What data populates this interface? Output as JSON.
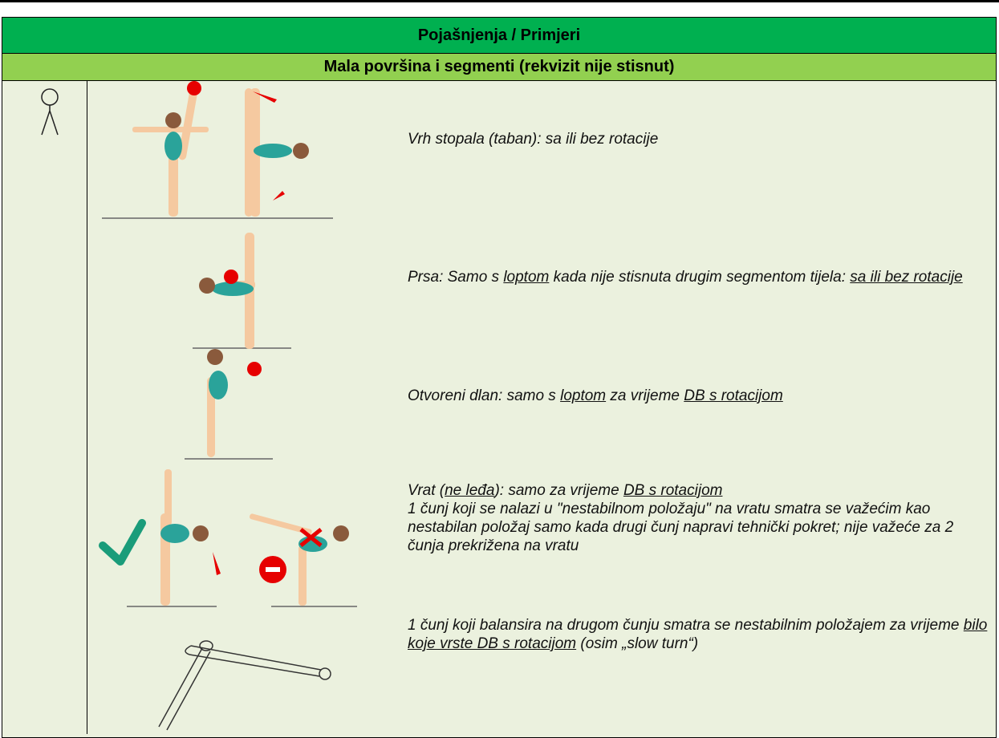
{
  "header": {
    "title": "Pojašnjenja / Primjeri",
    "subtitle": "Mala površina i segmenti (rekvizit nije stisnut)"
  },
  "rows": [
    {
      "paragraphs": [
        [
          "Vrh stopala (taban): sa ili bez rotacije"
        ]
      ]
    },
    {
      "paragraphs": [
        [
          "Prsa: Samo s ",
          {
            "text": "loptom",
            "underline": true
          },
          " kada nije stisnuta drugim segmentom tijela: ",
          {
            "text": "sa ili bez rotacije",
            "underline": true
          }
        ]
      ]
    },
    {
      "paragraphs": [
        [
          "Otvoreni dlan: samo s ",
          {
            "text": "loptom",
            "underline": true
          },
          " za vrijeme ",
          {
            "text": "DB s rotacijom",
            "underline": true
          }
        ]
      ]
    },
    {
      "paragraphs": [
        [
          "Vrat (",
          {
            "text": "ne leđa",
            "underline": true
          },
          "): samo za vrijeme ",
          {
            "text": "DB s rotacijom",
            "underline": true
          }
        ],
        [
          "1 čunj koji se nalazi u \"nestabilnom položaju\" na vratu smatra se važećim kao nestabilan položaj samo kada drugi čunj napravi tehnički pokret; nije važeće za 2 čunja prekrižena na vratu"
        ]
      ]
    },
    {
      "paragraphs": [
        [
          "1 čunj koji balansira na drugom čunju smatra se nestabilnim položajem za vrijeme ",
          {
            "text": "bilo koje vrste DB s rotacijom",
            "underline": true
          },
          " (osim „slow turn“)"
        ]
      ]
    }
  ]
}
